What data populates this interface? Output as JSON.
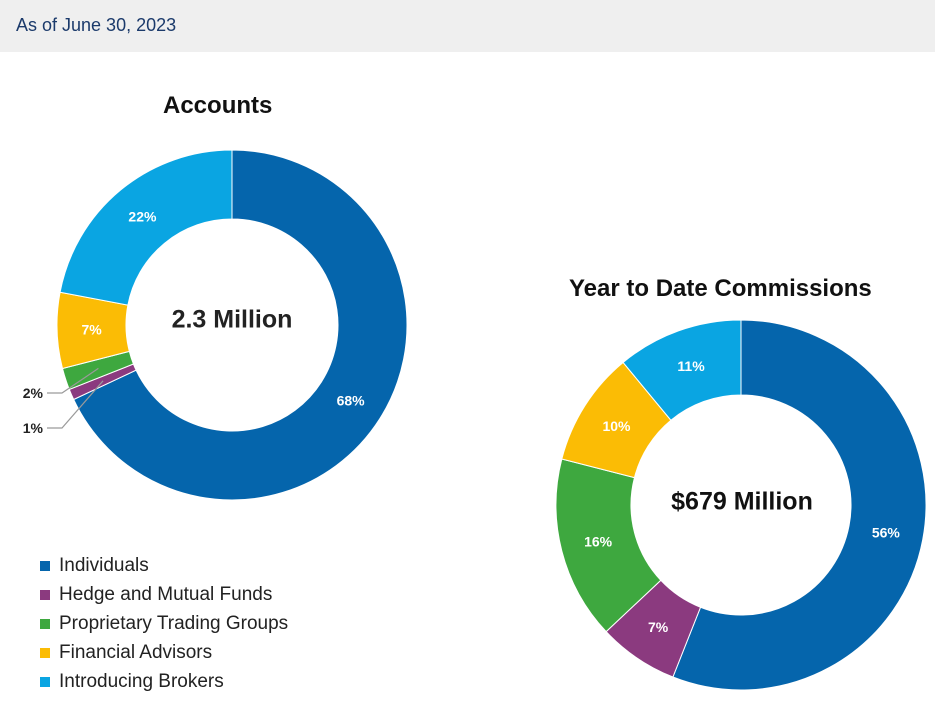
{
  "header": {
    "date_label": "As of June 30, 2023"
  },
  "colors": {
    "Individuals": "#0565ac",
    "Hedge and Mutual Funds": "#8b3a7f",
    "Proprietary Trading Groups": "#3ea83f",
    "Financial Advisors": "#fbbc05",
    "Introducing Brokers": "#0aa5e2"
  },
  "chart_data": [
    {
      "type": "pie",
      "title": "Accounts",
      "center_label": "2.3 Million",
      "categories": [
        "Individuals",
        "Hedge and Mutual Funds",
        "Proprietary Trading Groups",
        "Financial Advisors",
        "Introducing Brokers"
      ],
      "values": [
        68,
        1,
        2,
        7,
        22
      ],
      "data_labels": [
        "68%",
        "1%",
        "2%",
        "7%",
        "22%"
      ]
    },
    {
      "type": "pie",
      "title": "Year to Date Commissions",
      "center_label": "$679 Million",
      "categories": [
        "Individuals",
        "Hedge and Mutual Funds",
        "Proprietary Trading Groups",
        "Financial Advisors",
        "Introducing Brokers"
      ],
      "values": [
        56,
        7,
        16,
        10,
        11
      ],
      "data_labels": [
        "56%",
        "7%",
        "16%",
        "10%",
        "11%"
      ]
    }
  ],
  "legend": {
    "items": [
      "Individuals",
      "Hedge and Mutual Funds",
      "Proprietary Trading Groups",
      "Financial Advisors",
      "Introducing Brokers"
    ]
  }
}
